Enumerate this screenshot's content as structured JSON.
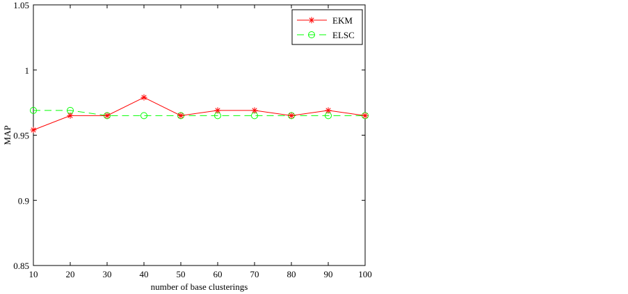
{
  "chart_data": {
    "type": "line",
    "xlabel": "number of base clusterings",
    "ylabel": "MAP",
    "xlim": [
      10,
      100
    ],
    "ylim": [
      0.85,
      1.05
    ],
    "x_ticks": [
      "10",
      "20",
      "30",
      "40",
      "50",
      "60",
      "70",
      "80",
      "90",
      "100"
    ],
    "y_ticks": [
      "0.85",
      "0.9",
      "0.95",
      "1",
      "1.05"
    ],
    "grid": false,
    "legend_position": "top-right",
    "series": [
      {
        "name": "EKM",
        "color": "#ff0000",
        "marker": "asterisk",
        "line_style": "solid",
        "x": [
          10,
          20,
          30,
          40,
          50,
          60,
          70,
          80,
          90,
          100
        ],
        "y": [
          0.954,
          0.965,
          0.965,
          0.979,
          0.965,
          0.969,
          0.969,
          0.965,
          0.969,
          0.965
        ]
      },
      {
        "name": "ELSC",
        "color": "#00ff00",
        "marker": "circle",
        "line_style": "dashed",
        "x": [
          10,
          20,
          30,
          40,
          50,
          60,
          70,
          80,
          90,
          100
        ],
        "y": [
          0.969,
          0.969,
          0.965,
          0.965,
          0.965,
          0.965,
          0.965,
          0.965,
          0.965,
          0.965
        ]
      }
    ]
  }
}
